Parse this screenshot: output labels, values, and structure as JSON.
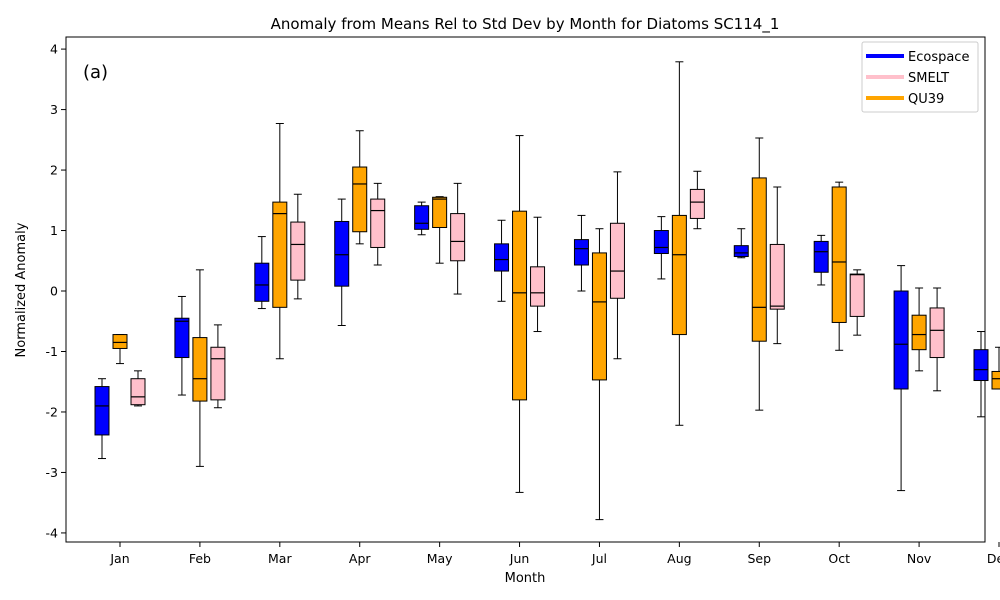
{
  "chart_data": {
    "type": "box",
    "title": "Anomaly from Means Rel to Std Dev by Month for Diatoms SC114_1",
    "xlabel": "Month",
    "ylabel": "Normalized Anomaly",
    "panel_label": "(a)",
    "categories": [
      "Jan",
      "Feb",
      "Mar",
      "Apr",
      "May",
      "Jun",
      "Jul",
      "Aug",
      "Sep",
      "Oct",
      "Nov",
      "Dec"
    ],
    "ylim": [
      -4.15,
      4.2
    ],
    "yticks": [
      -4,
      -3,
      -2,
      -1,
      0,
      1,
      2,
      3,
      4
    ],
    "grid": false,
    "legend_position": "top-right",
    "series": [
      {
        "name": "Ecospace",
        "color": "#0000ff",
        "boxes": [
          {
            "whislo": -2.77,
            "q1": -2.38,
            "med": -1.9,
            "q3": -1.58,
            "whishi": -1.45
          },
          {
            "whislo": -1.72,
            "q1": -1.1,
            "med": -0.5,
            "q3": -0.45,
            "whishi": -0.09
          },
          {
            "whislo": -0.29,
            "q1": -0.17,
            "med": 0.1,
            "q3": 0.46,
            "whishi": 0.9
          },
          {
            "whislo": -0.57,
            "q1": 0.08,
            "med": 0.6,
            "q3": 1.15,
            "whishi": 1.52
          },
          {
            "whislo": 0.93,
            "q1": 1.02,
            "med": 1.12,
            "q3": 1.41,
            "whishi": 1.47
          },
          {
            "whislo": -0.17,
            "q1": 0.33,
            "med": 0.52,
            "q3": 0.78,
            "whishi": 1.17
          },
          {
            "whislo": 0.0,
            "q1": 0.43,
            "med": 0.7,
            "q3": 0.85,
            "whishi": 1.25
          },
          {
            "whislo": 0.2,
            "q1": 0.62,
            "med": 0.72,
            "q3": 1.0,
            "whishi": 1.23
          },
          {
            "whislo": 0.55,
            "q1": 0.57,
            "med": 0.63,
            "q3": 0.75,
            "whishi": 1.03
          },
          {
            "whislo": 0.1,
            "q1": 0.31,
            "med": 0.65,
            "q3": 0.82,
            "whishi": 0.92
          },
          {
            "whislo": -3.3,
            "q1": -1.62,
            "med": -0.88,
            "q3": 0.0,
            "whishi": 0.42
          },
          {
            "whislo": -2.08,
            "q1": -1.48,
            "med": -1.3,
            "q3": -0.97,
            "whishi": -0.67
          }
        ]
      },
      {
        "name": "QU39",
        "color": "#ffa500",
        "boxes": [
          {
            "whislo": -1.2,
            "q1": -0.95,
            "med": -0.85,
            "q3": -0.72,
            "whishi": -0.72
          },
          {
            "whislo": -2.9,
            "q1": -1.82,
            "med": -1.45,
            "q3": -0.77,
            "whishi": 0.35
          },
          {
            "whislo": -1.12,
            "q1": -0.27,
            "med": 1.28,
            "q3": 1.47,
            "whishi": 2.77
          },
          {
            "whislo": 0.78,
            "q1": 0.98,
            "med": 1.77,
            "q3": 2.05,
            "whishi": 2.65
          },
          {
            "whislo": 0.46,
            "q1": 1.05,
            "med": 1.52,
            "q3": 1.55,
            "whishi": 1.56
          },
          {
            "whislo": -3.33,
            "q1": -1.8,
            "med": -0.03,
            "q3": 1.32,
            "whishi": 2.57
          },
          {
            "whislo": -3.78,
            "q1": -1.47,
            "med": -0.18,
            "q3": 0.63,
            "whishi": 1.03
          },
          {
            "whislo": -2.22,
            "q1": -0.72,
            "med": 0.6,
            "q3": 1.25,
            "whishi": 3.79
          },
          {
            "whislo": -1.97,
            "q1": -0.83,
            "med": -0.27,
            "q3": 1.87,
            "whishi": 2.53
          },
          {
            "whislo": -0.98,
            "q1": -0.52,
            "med": 0.48,
            "q3": 1.72,
            "whishi": 1.8
          },
          {
            "whislo": -1.32,
            "q1": -0.97,
            "med": -0.72,
            "q3": -0.4,
            "whishi": 0.05
          },
          {
            "whislo": -1.62,
            "q1": -1.62,
            "med": -1.45,
            "q3": -1.33,
            "whishi": -0.93
          }
        ]
      },
      {
        "name": "SMELT",
        "color": "#ffc0cb",
        "boxes": [
          {
            "whislo": -1.9,
            "q1": -1.88,
            "med": -1.75,
            "q3": -1.45,
            "whishi": -1.32
          },
          {
            "whislo": -1.93,
            "q1": -1.8,
            "med": -1.12,
            "q3": -0.93,
            "whishi": -0.56
          },
          {
            "whislo": -0.13,
            "q1": 0.18,
            "med": 0.77,
            "q3": 1.14,
            "whishi": 1.6
          },
          {
            "whislo": 0.43,
            "q1": 0.72,
            "med": 1.33,
            "q3": 1.52,
            "whishi": 1.78
          },
          {
            "whislo": -0.05,
            "q1": 0.5,
            "med": 0.82,
            "q3": 1.28,
            "whishi": 1.78
          },
          {
            "whislo": -0.67,
            "q1": -0.25,
            "med": -0.03,
            "q3": 0.4,
            "whishi": 1.22
          },
          {
            "whislo": -1.12,
            "q1": -0.12,
            "med": 0.33,
            "q3": 1.12,
            "whishi": 1.97
          },
          {
            "whislo": 1.03,
            "q1": 1.2,
            "med": 1.47,
            "q3": 1.68,
            "whishi": 1.98
          },
          {
            "whislo": -0.87,
            "q1": -0.3,
            "med": -0.25,
            "q3": 0.77,
            "whishi": 1.72
          },
          {
            "whislo": -0.73,
            "q1": -0.42,
            "med": 0.27,
            "q3": 0.28,
            "whishi": 0.35
          },
          {
            "whislo": -1.65,
            "q1": -1.1,
            "med": -0.65,
            "q3": -0.28,
            "whishi": 0.05
          },
          {
            "whislo": -1.8,
            "q1": -1.75,
            "med": -1.13,
            "q3": -0.95,
            "whishi": -0.42
          }
        ]
      }
    ],
    "legend_order": [
      "Ecospace",
      "SMELT",
      "QU39"
    ]
  }
}
